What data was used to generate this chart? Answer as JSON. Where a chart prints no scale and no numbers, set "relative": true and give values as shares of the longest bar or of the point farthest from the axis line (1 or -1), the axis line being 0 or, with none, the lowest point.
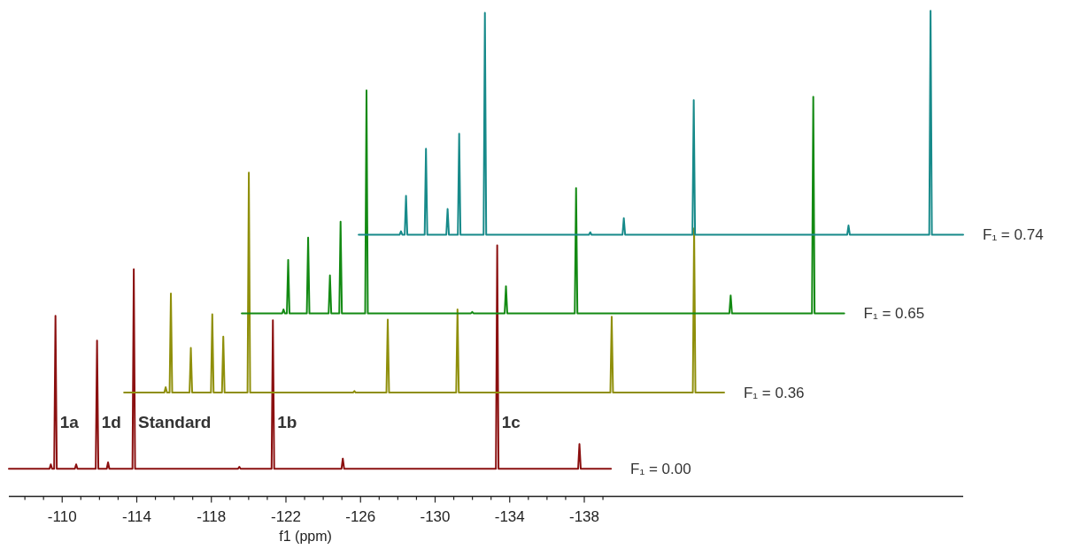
{
  "chart_data": {
    "type": "line",
    "relative": true,
    "xlabel": "f1 (ppm)",
    "xlim": [
      -107.14,
      -158.32
    ],
    "xticks": [
      -110,
      -114,
      -118,
      -122,
      -126,
      -130,
      -134,
      -138
    ],
    "annotations": [
      {
        "text": "1a",
        "x": -109.64,
        "y": 0.142
      },
      {
        "text": "1d",
        "x": -111.87,
        "y": 0.142
      },
      {
        "text": "Standard",
        "x": -113.84,
        "y": 0.142
      },
      {
        "text": "1b",
        "x": -121.3,
        "y": 0.142
      },
      {
        "text": "1c",
        "x": -133.33,
        "y": 0.142
      }
    ],
    "series": [
      {
        "name": "F₁ = 0.00",
        "color": "#8b1010",
        "x": [
          -107.14,
          -109.32,
          -109.39,
          -109.46,
          -109.57,
          -109.64,
          -109.71,
          -110.68,
          -110.75,
          -110.82,
          -111.8,
          -111.87,
          -111.94,
          -112.39,
          -112.46,
          -112.53,
          -113.77,
          -113.84,
          -113.91,
          -119.43,
          -119.5,
          -119.57,
          -121.23,
          -121.3,
          -121.37,
          -124.98,
          -125.05,
          -125.12,
          -133.26,
          -133.33,
          -133.4,
          -137.67,
          -137.74,
          -137.81,
          -139.43
        ],
        "values": [
          0.057,
          0.057,
          0.066,
          0.057,
          0.057,
          0.372,
          0.057,
          0.057,
          0.066,
          0.057,
          0.057,
          0.321,
          0.057,
          0.057,
          0.07,
          0.057,
          0.057,
          0.468,
          0.057,
          0.057,
          0.061,
          0.057,
          0.057,
          0.363,
          0.057,
          0.057,
          0.078,
          0.057,
          0.057,
          0.517,
          0.057,
          0.057,
          0.108,
          0.057,
          0.057
        ]
      },
      {
        "name": "F₁ = 0.36",
        "color": "#8f8f0a",
        "x": [
          -113.32,
          -115.48,
          -115.55,
          -115.62,
          -115.76,
          -115.83,
          -115.9,
          -116.83,
          -116.9,
          -116.97,
          -117.98,
          -118.05,
          -118.12,
          -118.57,
          -118.64,
          -118.71,
          -119.94,
          -120.01,
          -120.08,
          -125.6,
          -125.67,
          -125.74,
          -127.39,
          -127.46,
          -127.53,
          -131.13,
          -131.2,
          -131.27,
          -139.4,
          -139.47,
          -139.54,
          -143.82,
          -143.89,
          -143.96,
          -145.5
        ],
        "values": [
          0.214,
          0.214,
          0.225,
          0.214,
          0.214,
          0.418,
          0.214,
          0.214,
          0.306,
          0.214,
          0.214,
          0.375,
          0.214,
          0.214,
          0.329,
          0.214,
          0.214,
          0.667,
          0.214,
          0.214,
          0.217,
          0.214,
          0.214,
          0.364,
          0.214,
          0.214,
          0.385,
          0.214,
          0.214,
          0.37,
          0.214,
          0.214,
          0.552,
          0.214,
          0.214
        ]
      },
      {
        "name": "F₁ = 0.65",
        "color": "#138a13",
        "x": [
          -119.63,
          -121.8,
          -121.87,
          -121.94,
          -122.05,
          -122.12,
          -122.19,
          -123.12,
          -123.19,
          -123.26,
          -124.29,
          -124.36,
          -124.43,
          -124.86,
          -124.93,
          -125,
          -126.25,
          -126.32,
          -126.39,
          -131.92,
          -131.99,
          -132.06,
          -133.73,
          -133.8,
          -133.87,
          -137.49,
          -137.56,
          -137.63,
          -145.78,
          -145.85,
          -145.92,
          -150.21,
          -150.28,
          -150.35,
          -151.94
        ],
        "values": [
          0.377,
          0.377,
          0.385,
          0.377,
          0.377,
          0.487,
          0.377,
          0.377,
          0.533,
          0.377,
          0.377,
          0.455,
          0.377,
          0.377,
          0.566,
          0.377,
          0.377,
          0.836,
          0.377,
          0.377,
          0.38,
          0.377,
          0.377,
          0.433,
          0.377,
          0.377,
          0.635,
          0.377,
          0.377,
          0.414,
          0.377,
          0.377,
          0.823,
          0.377,
          0.377
        ]
      },
      {
        "name": "F₁ = 0.74",
        "color": "#178a8a",
        "x": [
          -125.9,
          -128.1,
          -128.17,
          -128.24,
          -128.37,
          -128.44,
          -128.51,
          -129.44,
          -129.51,
          -129.58,
          -130.6,
          -130.67,
          -130.74,
          -131.22,
          -131.29,
          -131.36,
          -132.6,
          -132.67,
          -132.74,
          -138.25,
          -138.32,
          -138.39,
          -140.05,
          -140.12,
          -140.19,
          -143.8,
          -143.87,
          -143.94,
          -152.1,
          -152.17,
          -152.24,
          -156.5,
          -156.57,
          -156.64,
          -158.32
        ],
        "values": [
          0.539,
          0.539,
          0.546,
          0.539,
          0.539,
          0.619,
          0.539,
          0.539,
          0.716,
          0.539,
          0.539,
          0.592,
          0.539,
          0.539,
          0.747,
          0.539,
          0.539,
          0.996,
          0.539,
          0.539,
          0.544,
          0.539,
          0.539,
          0.573,
          0.539,
          0.539,
          0.816,
          0.539,
          0.539,
          0.558,
          0.539,
          0.539,
          1,
          0.539,
          0.539
        ]
      }
    ]
  }
}
